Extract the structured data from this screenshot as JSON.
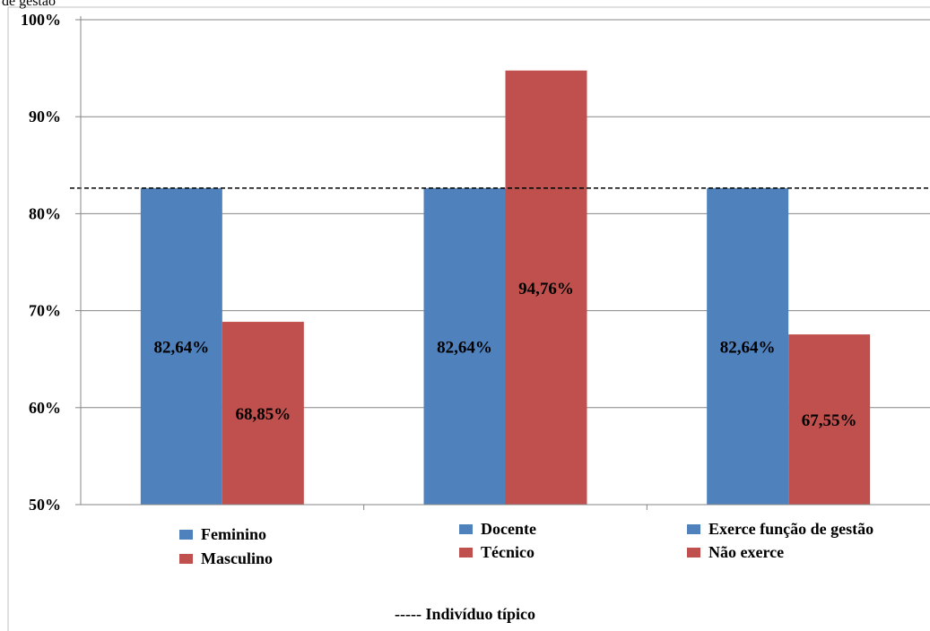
{
  "cut_off_caption": "de gestão",
  "chart_data": {
    "type": "bar",
    "ylim": [
      50,
      100
    ],
    "y_ticks": [
      "50%",
      "60%",
      "70%",
      "80%",
      "90%",
      "100%"
    ],
    "y_tick_values": [
      50,
      60,
      70,
      80,
      90,
      100
    ],
    "grid": true,
    "colors": {
      "first": "#4f81bd",
      "second": "#c0504d"
    },
    "groups": [
      {
        "bars": [
          {
            "name": "Feminino",
            "value": 82.64,
            "label": "82,64%"
          },
          {
            "name": "Masculino",
            "value": 68.85,
            "label": "68,85%"
          }
        ]
      },
      {
        "bars": [
          {
            "name": "Docente",
            "value": 82.64,
            "label": "82,64%"
          },
          {
            "name": "Técnico",
            "value": 94.76,
            "label": "94,76%"
          }
        ]
      },
      {
        "bars": [
          {
            "name": "Exerce função de gestão",
            "value": 82.64,
            "label": "82,64%"
          },
          {
            "name": "Não exerce",
            "value": 67.55,
            "label": "67,55%"
          }
        ]
      }
    ],
    "reference_line": {
      "value": 82.64,
      "style": "dashed",
      "label": "----- Indivíduo  típico"
    }
  }
}
